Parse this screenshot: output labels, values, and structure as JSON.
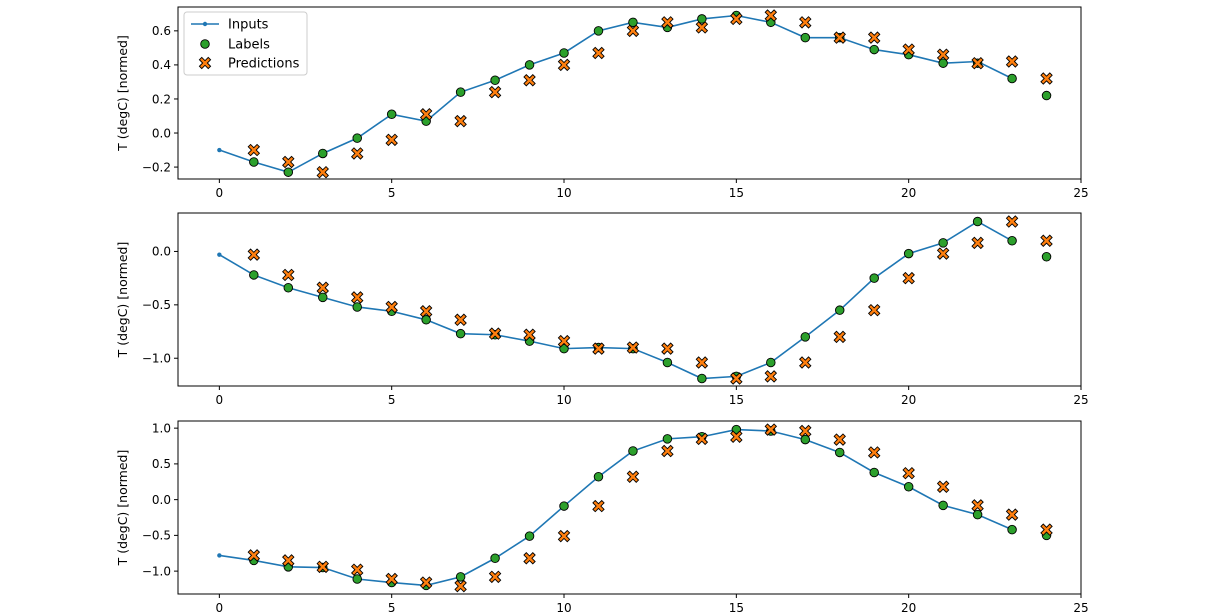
{
  "chart_data": [
    {
      "type": "line",
      "ylabel": "T (degC) [normed]",
      "xlim": [
        -1.2,
        25.0
      ],
      "ylim": [
        -0.27,
        0.74
      ],
      "xticks": [
        0,
        5,
        10,
        15,
        20,
        25
      ],
      "yticks": [
        -0.2,
        0.0,
        0.2,
        0.4,
        0.6
      ],
      "ytick_labels": [
        "−0.2",
        "0.0",
        "0.2",
        "0.4",
        "0.6"
      ],
      "legend": {
        "placement": "top-left",
        "entries": [
          "Inputs",
          "Labels",
          "Predictions"
        ]
      },
      "series": [
        {
          "name": "Inputs",
          "kind": "line-marker",
          "color": "#1f77b4",
          "x": [
            0,
            1,
            2,
            3,
            4,
            5,
            6,
            7,
            8,
            9,
            10,
            11,
            12,
            13,
            14,
            15,
            16,
            17,
            18,
            19,
            20,
            21,
            22,
            23
          ],
          "y": [
            -0.1,
            -0.17,
            -0.23,
            -0.12,
            -0.03,
            0.11,
            0.07,
            0.24,
            0.31,
            0.4,
            0.47,
            0.6,
            0.65,
            0.62,
            0.67,
            0.69,
            0.65,
            0.56,
            0.56,
            0.49,
            0.46,
            0.41,
            0.42,
            0.32
          ]
        },
        {
          "name": "Labels",
          "kind": "circle",
          "color": "#2ca02c",
          "x": [
            1,
            2,
            3,
            4,
            5,
            6,
            7,
            8,
            9,
            10,
            11,
            12,
            13,
            14,
            15,
            16,
            17,
            18,
            19,
            20,
            21,
            22,
            23,
            24
          ],
          "y": [
            -0.17,
            -0.23,
            -0.12,
            -0.03,
            0.11,
            0.07,
            0.24,
            0.31,
            0.4,
            0.47,
            0.6,
            0.65,
            0.62,
            0.67,
            0.69,
            0.65,
            0.56,
            0.56,
            0.49,
            0.46,
            0.41,
            0.41,
            0.32,
            0.22
          ]
        },
        {
          "name": "Predictions",
          "kind": "x-marker",
          "color": "#ff7f0e",
          "x": [
            1,
            2,
            3,
            4,
            5,
            6,
            7,
            8,
            9,
            10,
            11,
            12,
            13,
            14,
            15,
            16,
            17,
            18,
            19,
            20,
            21,
            22,
            23,
            24
          ],
          "y": [
            -0.1,
            -0.17,
            -0.23,
            -0.12,
            -0.04,
            0.11,
            0.07,
            0.24,
            0.31,
            0.4,
            0.47,
            0.6,
            0.65,
            0.62,
            0.67,
            0.69,
            0.65,
            0.56,
            0.56,
            0.49,
            0.46,
            0.41,
            0.42,
            0.32
          ]
        }
      ]
    },
    {
      "type": "line",
      "ylabel": "T (degC) [normed]",
      "xlim": [
        -1.2,
        25.0
      ],
      "ylim": [
        -1.26,
        0.36
      ],
      "xticks": [
        0,
        5,
        10,
        15,
        20,
        25
      ],
      "yticks": [
        -1.0,
        -0.5,
        0.0
      ],
      "ytick_labels": [
        "−1.0",
        "−0.5",
        "0.0"
      ],
      "series": [
        {
          "name": "Inputs",
          "kind": "line-marker",
          "color": "#1f77b4",
          "x": [
            0,
            1,
            2,
            3,
            4,
            5,
            6,
            7,
            8,
            9,
            10,
            11,
            12,
            13,
            14,
            15,
            16,
            17,
            18,
            19,
            20,
            21,
            22,
            23
          ],
          "y": [
            -0.03,
            -0.22,
            -0.34,
            -0.43,
            -0.52,
            -0.56,
            -0.64,
            -0.77,
            -0.78,
            -0.84,
            -0.91,
            -0.9,
            -0.91,
            -1.04,
            -1.19,
            -1.17,
            -1.04,
            -0.8,
            -0.55,
            -0.25,
            -0.02,
            0.08,
            0.28,
            0.1
          ]
        },
        {
          "name": "Labels",
          "kind": "circle",
          "color": "#2ca02c",
          "x": [
            1,
            2,
            3,
            4,
            5,
            6,
            7,
            8,
            9,
            10,
            11,
            12,
            13,
            14,
            15,
            16,
            17,
            18,
            19,
            20,
            21,
            22,
            23,
            24
          ],
          "y": [
            -0.22,
            -0.34,
            -0.43,
            -0.52,
            -0.56,
            -0.64,
            -0.77,
            -0.78,
            -0.84,
            -0.91,
            -0.9,
            -0.91,
            -1.04,
            -1.19,
            -1.17,
            -1.04,
            -0.8,
            -0.55,
            -0.25,
            -0.02,
            0.08,
            0.28,
            0.1,
            -0.05
          ]
        },
        {
          "name": "Predictions",
          "kind": "x-marker",
          "color": "#ff7f0e",
          "x": [
            1,
            2,
            3,
            4,
            5,
            6,
            7,
            8,
            9,
            10,
            11,
            12,
            13,
            14,
            15,
            16,
            17,
            18,
            19,
            20,
            21,
            22,
            23,
            24
          ],
          "y": [
            -0.03,
            -0.22,
            -0.34,
            -0.43,
            -0.52,
            -0.56,
            -0.64,
            -0.77,
            -0.78,
            -0.84,
            -0.91,
            -0.9,
            -0.91,
            -1.04,
            -1.19,
            -1.17,
            -1.04,
            -0.8,
            -0.55,
            -0.25,
            -0.02,
            0.08,
            0.28,
            0.1
          ]
        }
      ]
    },
    {
      "type": "line",
      "ylabel": "T (degC) [normed]",
      "xlim": [
        -1.2,
        25.0
      ],
      "ylim": [
        -1.32,
        1.1
      ],
      "xticks": [
        0,
        5,
        10,
        15,
        20,
        25
      ],
      "yticks": [
        -1.0,
        -0.5,
        0.0,
        0.5,
        1.0
      ],
      "ytick_labels": [
        "−1.0",
        "−0.5",
        "0.0",
        "0.5",
        "1.0"
      ],
      "series": [
        {
          "name": "Inputs",
          "kind": "line-marker",
          "color": "#1f77b4",
          "x": [
            0,
            1,
            2,
            3,
            4,
            5,
            6,
            7,
            8,
            9,
            10,
            11,
            12,
            13,
            14,
            15,
            16,
            17,
            18,
            19,
            20,
            21,
            22,
            23
          ],
          "y": [
            -0.78,
            -0.85,
            -0.94,
            -0.95,
            -1.11,
            -1.16,
            -1.2,
            -1.08,
            -0.82,
            -0.51,
            -0.09,
            0.32,
            0.68,
            0.85,
            0.88,
            0.98,
            0.96,
            0.84,
            0.66,
            0.38,
            0.18,
            -0.08,
            -0.21,
            -0.42
          ]
        },
        {
          "name": "Labels",
          "kind": "circle",
          "color": "#2ca02c",
          "x": [
            1,
            2,
            3,
            4,
            5,
            6,
            7,
            8,
            9,
            10,
            11,
            12,
            13,
            14,
            15,
            16,
            17,
            18,
            19,
            20,
            21,
            22,
            23,
            24
          ],
          "y": [
            -0.85,
            -0.94,
            -0.95,
            -1.11,
            -1.16,
            -1.2,
            -1.08,
            -0.82,
            -0.51,
            -0.09,
            0.32,
            0.68,
            0.85,
            0.88,
            0.98,
            0.96,
            0.84,
            0.66,
            0.38,
            0.18,
            -0.08,
            -0.21,
            -0.42,
            -0.5
          ]
        },
        {
          "name": "Predictions",
          "kind": "x-marker",
          "color": "#ff7f0e",
          "x": [
            1,
            2,
            3,
            4,
            5,
            6,
            7,
            8,
            9,
            10,
            11,
            12,
            13,
            14,
            15,
            16,
            17,
            18,
            19,
            20,
            21,
            22,
            23,
            24
          ],
          "y": [
            -0.78,
            -0.85,
            -0.94,
            -0.98,
            -1.11,
            -1.16,
            -1.21,
            -1.08,
            -0.82,
            -0.51,
            -0.09,
            0.32,
            0.68,
            0.85,
            0.88,
            0.98,
            0.96,
            0.84,
            0.66,
            0.37,
            0.18,
            -0.08,
            -0.21,
            -0.42
          ]
        }
      ]
    }
  ]
}
